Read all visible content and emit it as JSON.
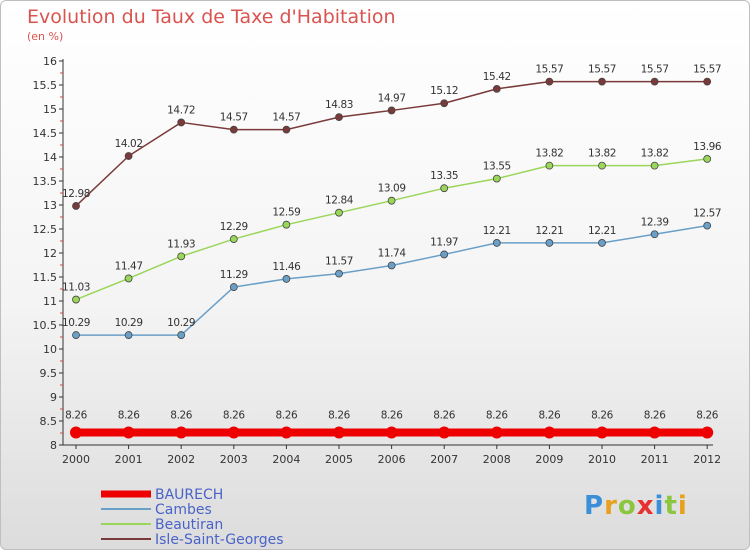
{
  "chart_data": {
    "type": "line",
    "title": "Evolution du Taux de Taxe d'Habitation",
    "subtitle": "(en %)",
    "x": [
      "2000",
      "2001",
      "2002",
      "2003",
      "2004",
      "2005",
      "2006",
      "2007",
      "2008",
      "2009",
      "2010",
      "2011",
      "2012"
    ],
    "ylim": [
      8,
      16
    ],
    "yticks": [
      "8",
      "8.5",
      "9",
      "9.5",
      "10",
      "10.5",
      "11",
      "11.5",
      "12",
      "12.5",
      "13",
      "13.5",
      "14",
      "14.5",
      "15",
      "15.5",
      "16"
    ],
    "grid": false,
    "legend_position": "bottom-left",
    "series": [
      {
        "name": "BAURECH",
        "color": "#ee0000",
        "values": [
          8.26,
          8.26,
          8.26,
          8.26,
          8.26,
          8.26,
          8.26,
          8.26,
          8.26,
          8.26,
          8.26,
          8.26,
          8.26
        ],
        "labels": [
          "8.26",
          "8.26",
          "8.26",
          "8.26",
          "8.26",
          "8.26",
          "8.26",
          "8.26",
          "8.26",
          "8.26",
          "8.26",
          "8.26",
          "8.26"
        ]
      },
      {
        "name": "Cambes",
        "color": "#6a9fc8",
        "values": [
          10.29,
          10.29,
          10.29,
          11.29,
          11.46,
          11.57,
          11.74,
          11.97,
          12.21,
          12.21,
          12.21,
          12.39,
          12.57
        ],
        "labels": [
          "10.29",
          "10.29",
          "10.29",
          "11.29",
          "11.46",
          "11.57",
          "11.74",
          "11.97",
          "12.21",
          "12.21",
          "12.21",
          "12.39",
          "12.57"
        ]
      },
      {
        "name": "Beautiran",
        "color": "#9ad65a",
        "values": [
          11.03,
          11.47,
          11.93,
          12.29,
          12.59,
          12.84,
          13.09,
          13.35,
          13.55,
          13.82,
          13.82,
          13.82,
          13.96
        ],
        "labels": [
          "11.03",
          "11.47",
          "11.93",
          "12.29",
          "12.59",
          "12.84",
          "13.09",
          "13.35",
          "13.55",
          "13.82",
          "13.82",
          "13.82",
          "13.96"
        ]
      },
      {
        "name": "Isle-Saint-Georges",
        "color": "#7a3a3a",
        "values": [
          12.98,
          14.02,
          14.72,
          14.57,
          14.57,
          14.83,
          14.97,
          15.12,
          15.42,
          15.57,
          15.57,
          15.57,
          15.57
        ],
        "labels": [
          "12.98",
          "14.02",
          "14.72",
          "14.57",
          "14.57",
          "14.83",
          "14.97",
          "15.12",
          "15.42",
          "15.57",
          "15.57",
          "15.57",
          "15.57"
        ]
      }
    ]
  },
  "logo": {
    "letters": [
      "P",
      "r",
      "o",
      "x",
      "i",
      "t",
      "i"
    ],
    "colors": [
      "#3a8fd8",
      "#e8a020",
      "#8cc63f",
      "#e83030",
      "#3a8fd8",
      "#8cc63f",
      "#e8a020"
    ]
  }
}
